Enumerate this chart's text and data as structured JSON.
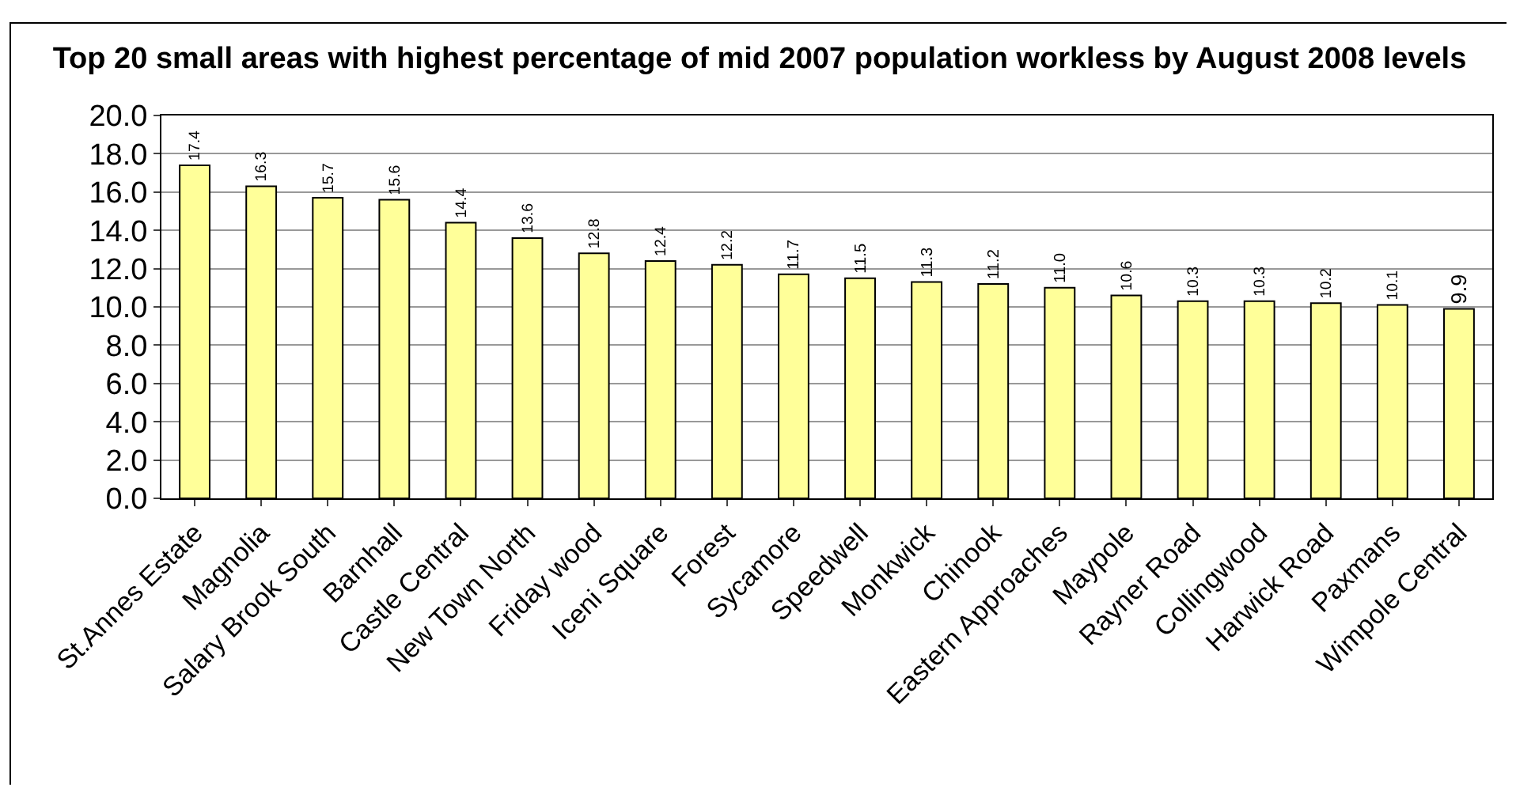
{
  "chart_data": {
    "type": "bar",
    "title": "Top 20 small areas with highest percentage of mid 2007 population workless by August 2008 levels",
    "categories": [
      "St.Annes Estate",
      "Magnolia",
      "Salary Brook South",
      "Barnhall",
      "Castle Central",
      "New Town North",
      "Friday wood",
      "Iceni Square",
      "Forest",
      "Sycamore",
      "Speedwell",
      "Monkwick",
      "Chinook",
      "Eastern Approaches",
      "Maypole",
      "Rayner Road",
      "Collingwood",
      "Harwick Road",
      "Paxmans",
      "Wimpole Central"
    ],
    "values": [
      17.4,
      16.3,
      15.7,
      15.6,
      14.4,
      13.6,
      12.8,
      12.4,
      12.2,
      11.7,
      11.5,
      11.3,
      11.2,
      11.0,
      10.6,
      10.3,
      10.3,
      10.2,
      10.1,
      9.9
    ],
    "value_labels": [
      "17.4",
      "16.3",
      "15.7",
      "15.6",
      "14.4",
      "13.6",
      "12.8",
      "12.4",
      "12.2",
      "11.7",
      "11.5",
      "11.3",
      "11.2",
      "11.0",
      "10.6",
      "10.3",
      "10.3",
      "10.2",
      "10.1",
      "9.9"
    ],
    "color": "#ffff99",
    "ylim": [
      0,
      20
    ],
    "yticks": [
      {
        "value": 0,
        "label": "0.0"
      },
      {
        "value": 2,
        "label": "2.0"
      },
      {
        "value": 4,
        "label": "4.0"
      },
      {
        "value": 6,
        "label": "6.0"
      },
      {
        "value": 8,
        "label": "8.0"
      },
      {
        "value": 10,
        "label": "10.0"
      },
      {
        "value": 12,
        "label": "12.0"
      },
      {
        "value": 14,
        "label": "14.0"
      },
      {
        "value": 16,
        "label": "16.0"
      },
      {
        "value": 18,
        "label": "18.0"
      },
      {
        "value": 20,
        "label": "20.0"
      }
    ],
    "grid": "y",
    "legend": false
  }
}
